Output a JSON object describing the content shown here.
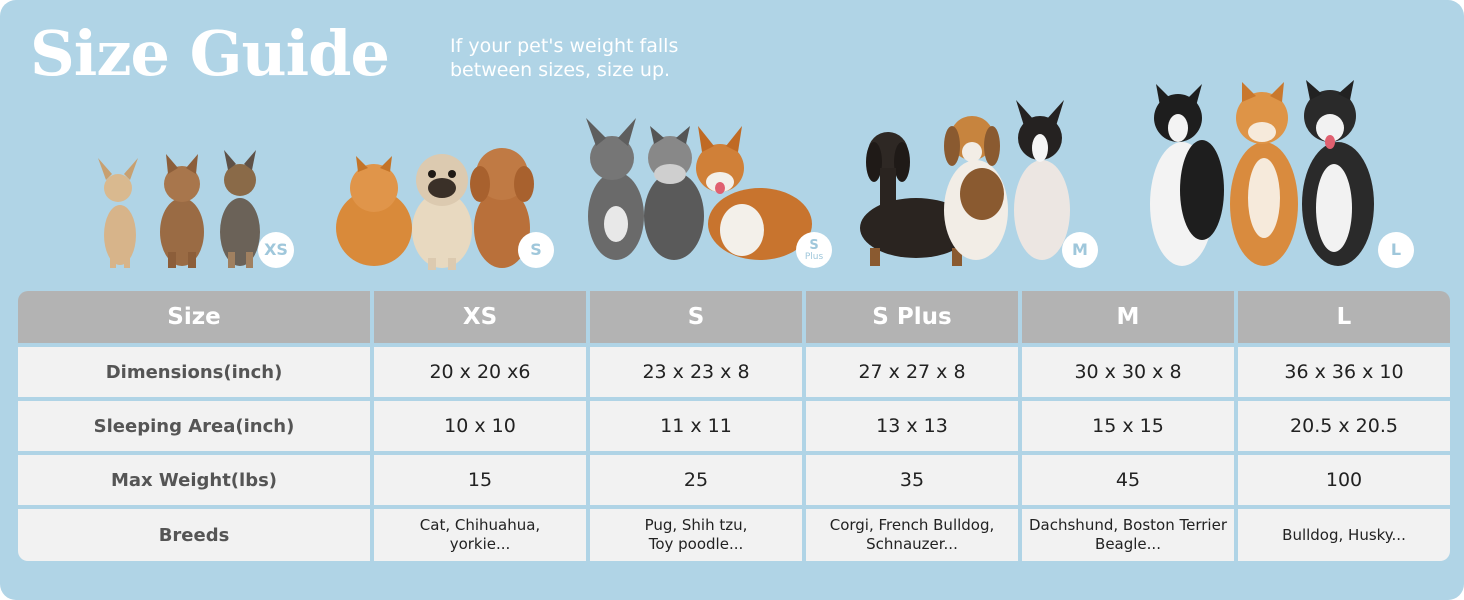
{
  "header": {
    "title": "Size Guide",
    "subtitle_line1": "If your pet's weight falls",
    "subtitle_line2": "between sizes, size up."
  },
  "size_badges": [
    {
      "label": "XS"
    },
    {
      "label": "S"
    },
    {
      "label": "S",
      "sub": "Plus"
    },
    {
      "label": "M"
    },
    {
      "label": "L"
    }
  ],
  "colors": {
    "background": "#b0d4e6",
    "header_cell": "#b3b3b3",
    "body_cell": "#f2f2f2",
    "title_text": "#ffffff"
  },
  "table": {
    "headers": [
      "Size",
      "XS",
      "S",
      "S Plus",
      "M",
      "L"
    ],
    "rows": [
      {
        "label": "Dimensions(inch)",
        "values": [
          "20 x 20 x6",
          "23 x 23 x 8",
          "27 x 27 x 8",
          "30 x 30 x 8",
          "36 x 36 x 10"
        ]
      },
      {
        "label": "Sleeping Area(inch)",
        "values": [
          "10 x 10",
          "11 x 11",
          "13 x 13",
          "15 x 15",
          "20.5 x 20.5"
        ]
      },
      {
        "label": "Max Weight(lbs)",
        "values": [
          "15",
          "25",
          "35",
          "45",
          "100"
        ]
      }
    ],
    "breeds": {
      "label": "Breeds",
      "values": [
        {
          "line1": "Cat, Chihuahua,",
          "line2": "yorkie..."
        },
        {
          "line1": "Pug, Shih tzu,",
          "line2": "Toy poodle..."
        },
        {
          "line1": "Corgi, French Bulldog,",
          "line2": "Schnauzer..."
        },
        {
          "line1": "Dachshund, Boston Terrier",
          "line2": "Beagle..."
        },
        {
          "line1": "Bulldog, Husky...",
          "line2": ""
        }
      ]
    }
  }
}
